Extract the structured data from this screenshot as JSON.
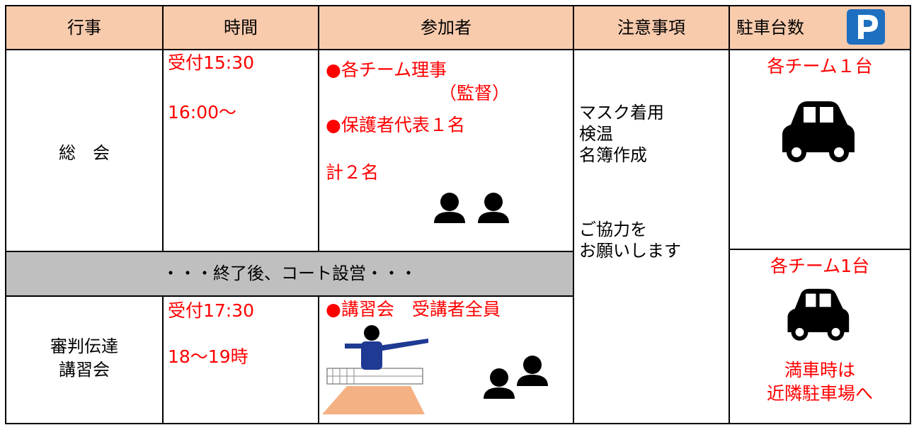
{
  "header": [
    "行事",
    "時間",
    "参加者",
    "注意事項",
    "駐車台数"
  ],
  "rows": [
    {
      "event": [
        "総　会"
      ],
      "time": [
        "受付15:30",
        "16:00～"
      ],
      "participants": [
        "●各チーム理事",
        "（監督）",
        "●保護者代表１名",
        "計２名"
      ]
    },
    {
      "event": [
        "審判伝達",
        "講習会"
      ],
      "time": [
        "受付17:30",
        "18～19時"
      ],
      "participants": [
        "●講習会　受講者全員"
      ]
    }
  ],
  "band": "・・・終了後、コート設営・・・",
  "notes": [
    "マスク着用",
    "検温",
    "名簿作成",
    "ご協力を",
    "お願いします"
  ],
  "parking": [
    [
      "各チーム１台"
    ],
    [
      "各チーム1台",
      "満車時は",
      "近隣駐車場へ"
    ]
  ]
}
